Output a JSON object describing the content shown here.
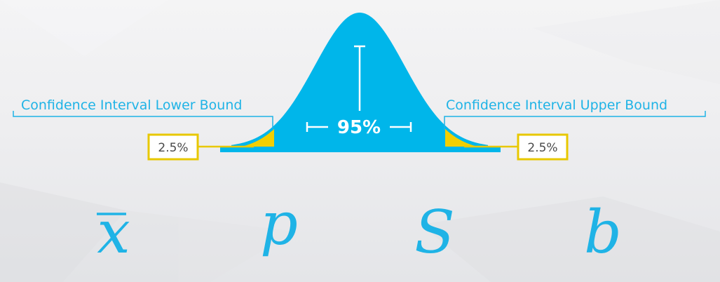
{
  "diagram": {
    "center_label": "95%",
    "lower_bound": {
      "label": "Confidence Interval Lower Bound",
      "tail_percent": "2.5%"
    },
    "upper_bound": {
      "label": "Confidence Interval Upper Bound",
      "tail_percent": "2.5%"
    },
    "colors": {
      "curve": "#00b6ea",
      "tail": "#f2cf00",
      "label": "#1fb3e6",
      "tail_box_border": "#e8c800"
    }
  },
  "symbols": [
    "x",
    "p",
    "S",
    "b"
  ]
}
